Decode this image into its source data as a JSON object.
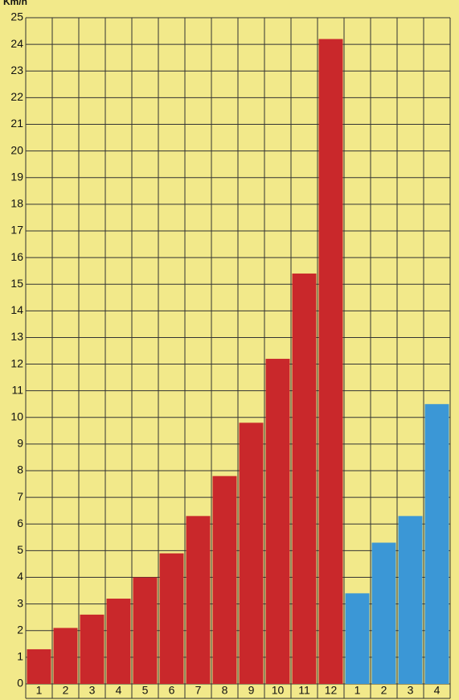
{
  "chart_data": {
    "type": "bar",
    "y_label": "Km/h",
    "categories": [
      "1",
      "2",
      "3",
      "4",
      "5",
      "6",
      "7",
      "8",
      "9",
      "10",
      "11",
      "12",
      "1",
      "2",
      "3",
      "4"
    ],
    "series": [
      {
        "color": "#c9282b",
        "values": [
          1.3,
          2.1,
          2.6,
          3.2,
          4.0,
          4.9,
          6.3,
          7.8,
          9.8,
          12.2,
          15.4,
          24.2,
          null,
          null,
          null,
          null
        ]
      },
      {
        "color": "#3b97d6",
        "values": [
          null,
          null,
          null,
          null,
          null,
          null,
          null,
          null,
          null,
          null,
          null,
          null,
          3.4,
          5.3,
          6.3,
          10.5
        ]
      }
    ],
    "ylim": [
      0,
      25
    ],
    "yticks": [
      0,
      1,
      2,
      3,
      4,
      5,
      6,
      7,
      8,
      9,
      10,
      11,
      12,
      13,
      14,
      15,
      16,
      17,
      18,
      19,
      20,
      21,
      22,
      23,
      24,
      25
    ],
    "grid": true
  }
}
